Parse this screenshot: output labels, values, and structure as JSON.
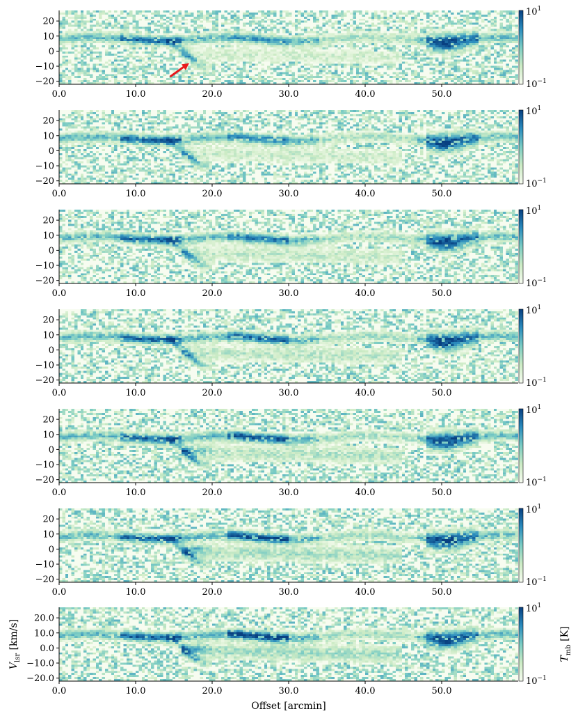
{
  "chart_data": {
    "type": "heatmap",
    "panel_count": 7,
    "x_range": [
      0,
      60
    ],
    "y_range": [
      -22,
      27
    ],
    "x_ticks": [
      "0.0",
      "10.0",
      "20.0",
      "30.0",
      "40.0",
      "50.0"
    ],
    "y_ticks_plain": [
      "20",
      "10",
      "0",
      "-10",
      "-20"
    ],
    "y_ticks_last": [
      "20.0",
      "10.0",
      "0.0",
      "-10.0",
      "-20.0"
    ],
    "xlabel": "Offset [arcmin]",
    "ylabel": "V_lsr [km/s]",
    "colorbar": {
      "label": "T_mb [K]",
      "scale": "log",
      "max_label": "10^1",
      "min_label": "10^-1",
      "colors": [
        "#f7fcf0",
        "#ccebc5",
        "#7bccc4",
        "#2b8cbe",
        "#084081"
      ]
    },
    "features": {
      "main_emission_velocity": 8,
      "secondary_component": "from ~15 arcmin at 8 km/s descending to ~-10 km/s near 18 arcmin",
      "bright_region_offsets": [
        10,
        15,
        25,
        50
      ]
    },
    "annotation": {
      "type": "arrow",
      "panel": 1,
      "color": "#e8191c",
      "from": [
        14.5,
        -17
      ],
      "to": [
        17,
        -8
      ]
    }
  }
}
